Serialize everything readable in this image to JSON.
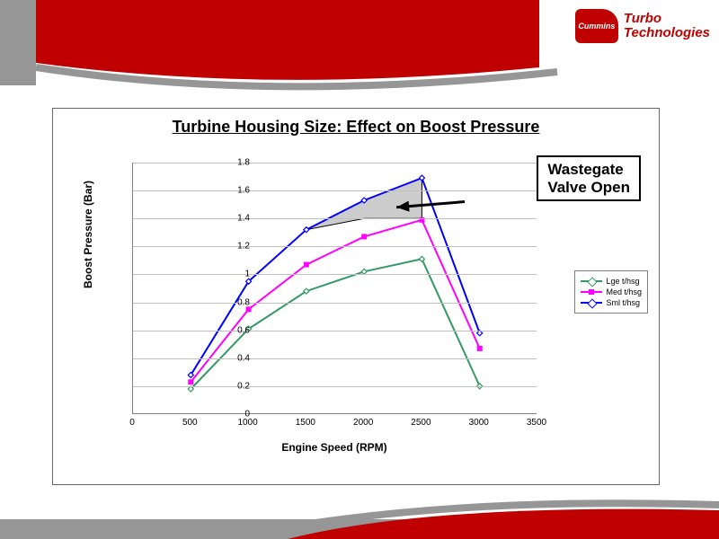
{
  "brand": {
    "badge": "Cummins",
    "line1": "Turbo",
    "line2": "Technologies"
  },
  "chart": {
    "type": "line",
    "title": "Turbine Housing Size: Effect on Boost Pressure",
    "title_fontsize": 18,
    "xlabel": "Engine Speed (RPM)",
    "ylabel": "Boost Pressure (Bar)",
    "label_fontsize": 12,
    "xlim": [
      0,
      3500
    ],
    "xtick_step": 500,
    "ylim": [
      0,
      1.8
    ],
    "ytick_step": 0.2,
    "background_color": "#ffffff",
    "grid_color": "#c0c0c0",
    "axis_color": "#808080",
    "tick_fontsize": 10,
    "line_width": 2,
    "marker_size": 6,
    "series": [
      {
        "name": "Lge t/hsg",
        "color": "#339966",
        "marker": "diamond",
        "x": [
          500,
          1000,
          1500,
          2000,
          2500,
          3000
        ],
        "y": [
          0.18,
          0.61,
          0.88,
          1.02,
          1.11,
          0.2
        ]
      },
      {
        "name": "Med t/hsg",
        "color": "#ff00ff",
        "marker": "square",
        "x": [
          500,
          1000,
          1500,
          2000,
          2500,
          3000
        ],
        "y": [
          0.23,
          0.75,
          1.07,
          1.27,
          1.39,
          0.47
        ]
      },
      {
        "name": "Sml t/hsg",
        "color": "#0000ff",
        "marker": "diamond",
        "x": [
          500,
          1000,
          1500,
          2000,
          2500,
          3000
        ],
        "y": [
          0.28,
          0.95,
          1.32,
          1.53,
          1.69,
          0.58
        ]
      }
    ],
    "shaded_region": {
      "fill": "#b0b0b0",
      "opacity": 0.65,
      "stroke": "#000000",
      "points_x": [
        1500,
        2000,
        2500,
        2500,
        2000,
        1500
      ],
      "points_y": [
        1.32,
        1.53,
        1.69,
        1.4,
        1.4,
        1.32
      ]
    },
    "callout": {
      "text1": "Wastegate",
      "text2": "Valve Open",
      "box_border": "#000000",
      "box_bg": "#ffffff",
      "arrow_from_xy": [
        2870,
        1.52
      ],
      "arrow_to_xy": [
        2280,
        1.48
      ]
    },
    "legend": {
      "position": "right-middle",
      "border_color": "#808080",
      "fontsize": 9
    }
  },
  "theme": {
    "brand_red": "#c00000",
    "header_gray": "#969696"
  }
}
